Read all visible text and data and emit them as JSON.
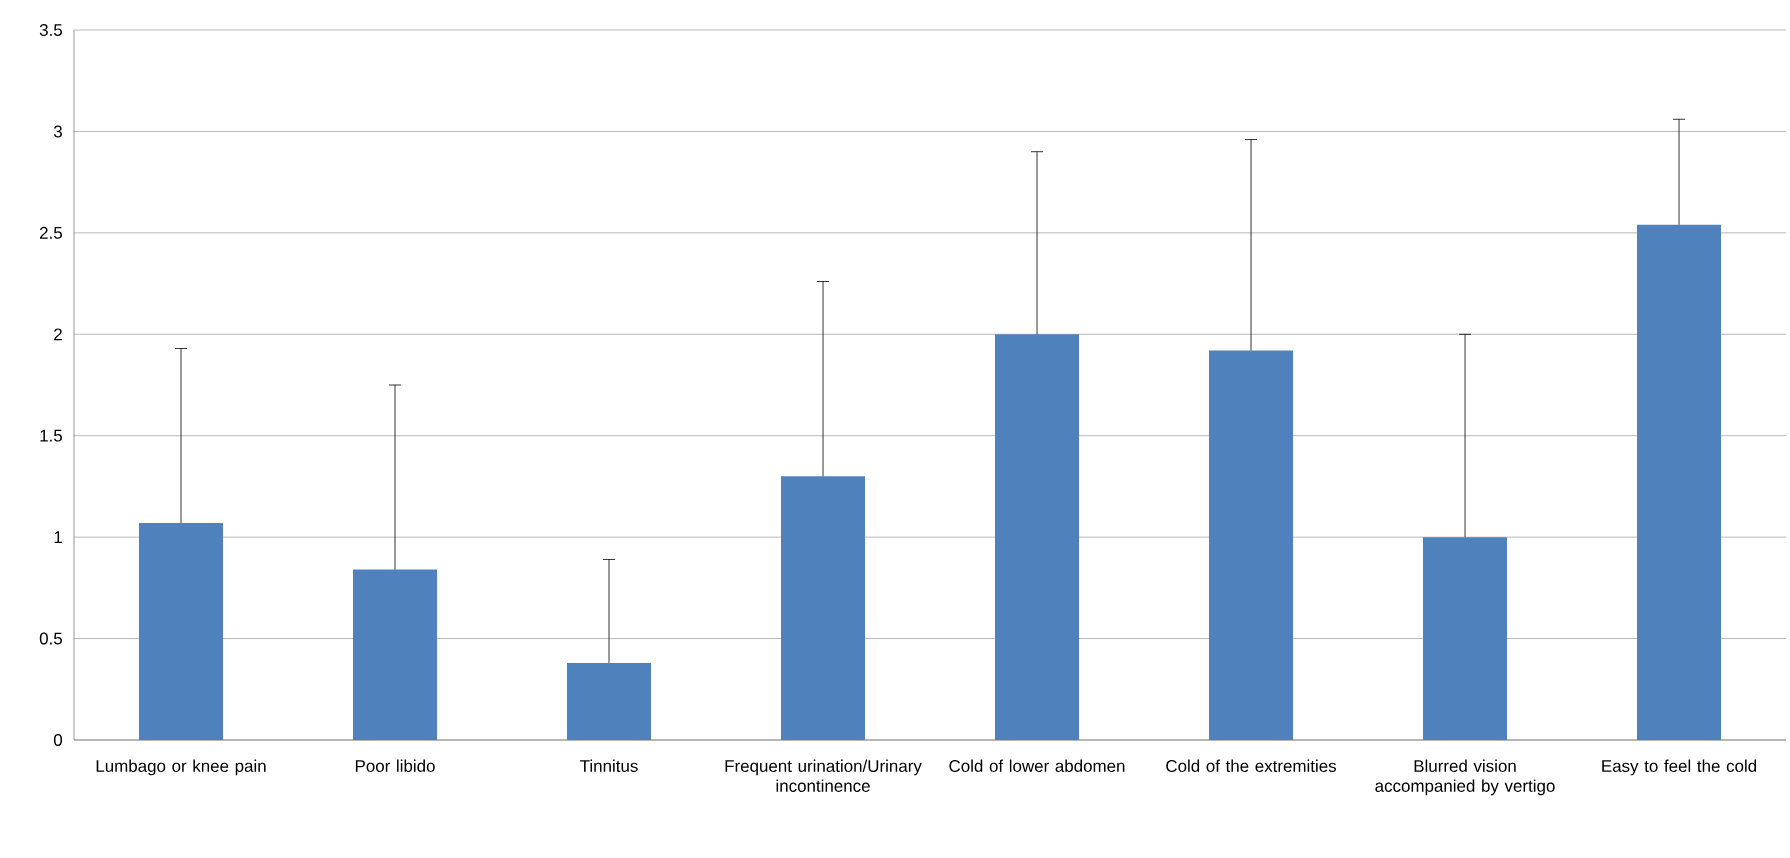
{
  "chart_data": {
    "type": "bar",
    "categories": [
      "Lumbago or knee pain",
      "Poor libido",
      "Tinnitus",
      "Frequent urination/Urinary incontinence",
      "Cold of lower abdomen",
      "Cold of the extremities",
      "Blurred vision accompanied by vertigo",
      "Easy to feel the cold"
    ],
    "values": [
      1.07,
      0.84,
      0.38,
      1.3,
      2.0,
      1.92,
      1.0,
      2.54
    ],
    "errors": [
      [
        1.07,
        1.93
      ],
      [
        0.84,
        1.75
      ],
      [
        0.38,
        0.89
      ],
      [
        1.3,
        2.26
      ],
      [
        2.0,
        2.9
      ],
      [
        1.92,
        2.96
      ],
      [
        1.0,
        2.0
      ],
      [
        2.54,
        3.06
      ]
    ],
    "color": "#4f81bd",
    "ylim": [
      0,
      3.5
    ],
    "yticks": [
      0,
      0.5,
      1,
      1.5,
      2,
      2.5,
      3,
      3.5
    ],
    "grid": "y"
  }
}
